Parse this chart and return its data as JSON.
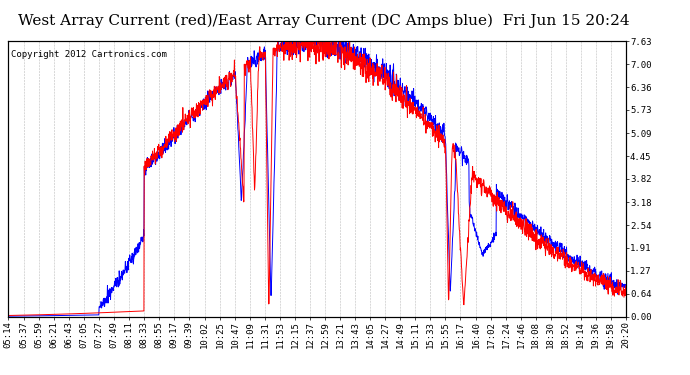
{
  "title": "West Array Current (red)/East Array Current (DC Amps blue)  Fri Jun 15 20:24",
  "copyright": "Copyright 2012 Cartronics.com",
  "background_color": "#ffffff",
  "plot_bg_color": "#ffffff",
  "grid_color": "#aaaaaa",
  "y_ticks": [
    0.0,
    0.64,
    1.27,
    1.91,
    2.54,
    3.18,
    3.82,
    4.45,
    5.09,
    5.73,
    6.36,
    7.0,
    7.63
  ],
  "ylim": [
    0.0,
    7.63
  ],
  "x_labels": [
    "05:14",
    "05:37",
    "05:59",
    "06:21",
    "06:43",
    "07:05",
    "07:27",
    "07:49",
    "08:11",
    "08:33",
    "08:55",
    "09:17",
    "09:39",
    "10:02",
    "10:25",
    "10:47",
    "11:09",
    "11:31",
    "11:53",
    "12:15",
    "12:37",
    "12:59",
    "13:21",
    "13:43",
    "14:05",
    "14:27",
    "14:49",
    "15:11",
    "15:33",
    "15:55",
    "16:17",
    "16:40",
    "17:02",
    "17:24",
    "17:46",
    "18:08",
    "18:30",
    "18:52",
    "19:14",
    "19:36",
    "19:58",
    "20:20"
  ],
  "title_fontsize": 11,
  "copyright_fontsize": 6.5,
  "tick_fontsize": 6.5
}
